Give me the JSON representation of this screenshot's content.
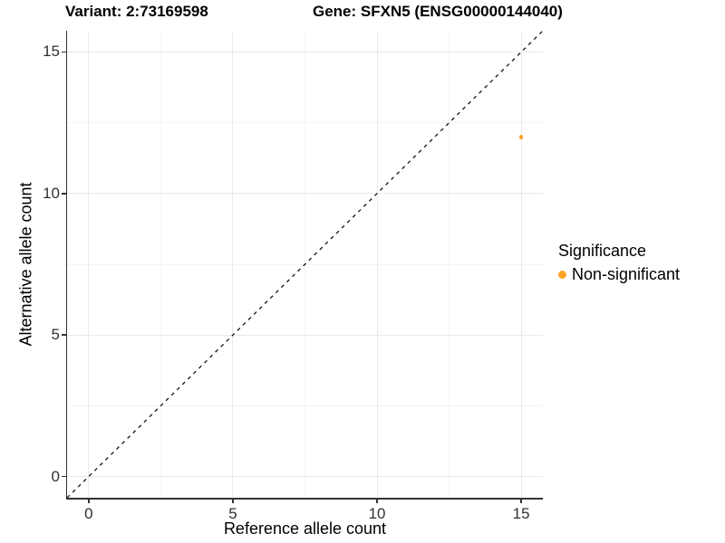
{
  "chart_data": {
    "type": "scatter",
    "title_variant": "Variant: 2:73169598",
    "title_gene": "Gene: SFXN5 (ENSG00000144040)",
    "xlabel": "Reference allele count",
    "ylabel": "Alternative allele count",
    "xlim": [
      -0.75,
      15.75
    ],
    "ylim": [
      -0.75,
      15.75
    ],
    "x_ticks": [
      0,
      5,
      10,
      15
    ],
    "y_ticks": [
      0,
      5,
      10,
      15
    ],
    "x_minor_ticks": [
      2.5,
      7.5,
      12.5
    ],
    "y_minor_ticks": [
      2.5,
      7.5,
      12.5
    ],
    "grid": true,
    "legend_position": "right",
    "reference_line": {
      "type": "identity",
      "slope": 1,
      "intercept": 0,
      "style": "dashed",
      "color": "#111111"
    },
    "points": [
      {
        "x": 15,
        "y": 12,
        "series": "Non-significant",
        "color": "#FFA425"
      }
    ],
    "legend": {
      "title": "Significance",
      "entries": [
        {
          "label": "Non-significant",
          "color": "#FFA425"
        }
      ]
    }
  },
  "colors": {
    "point": "#FFA425",
    "grid_major": "#E9E9E9",
    "grid_minor": "#F4F4F4",
    "axis_line": "#333333",
    "tick_text": "#303030",
    "title_text": "#000000"
  }
}
